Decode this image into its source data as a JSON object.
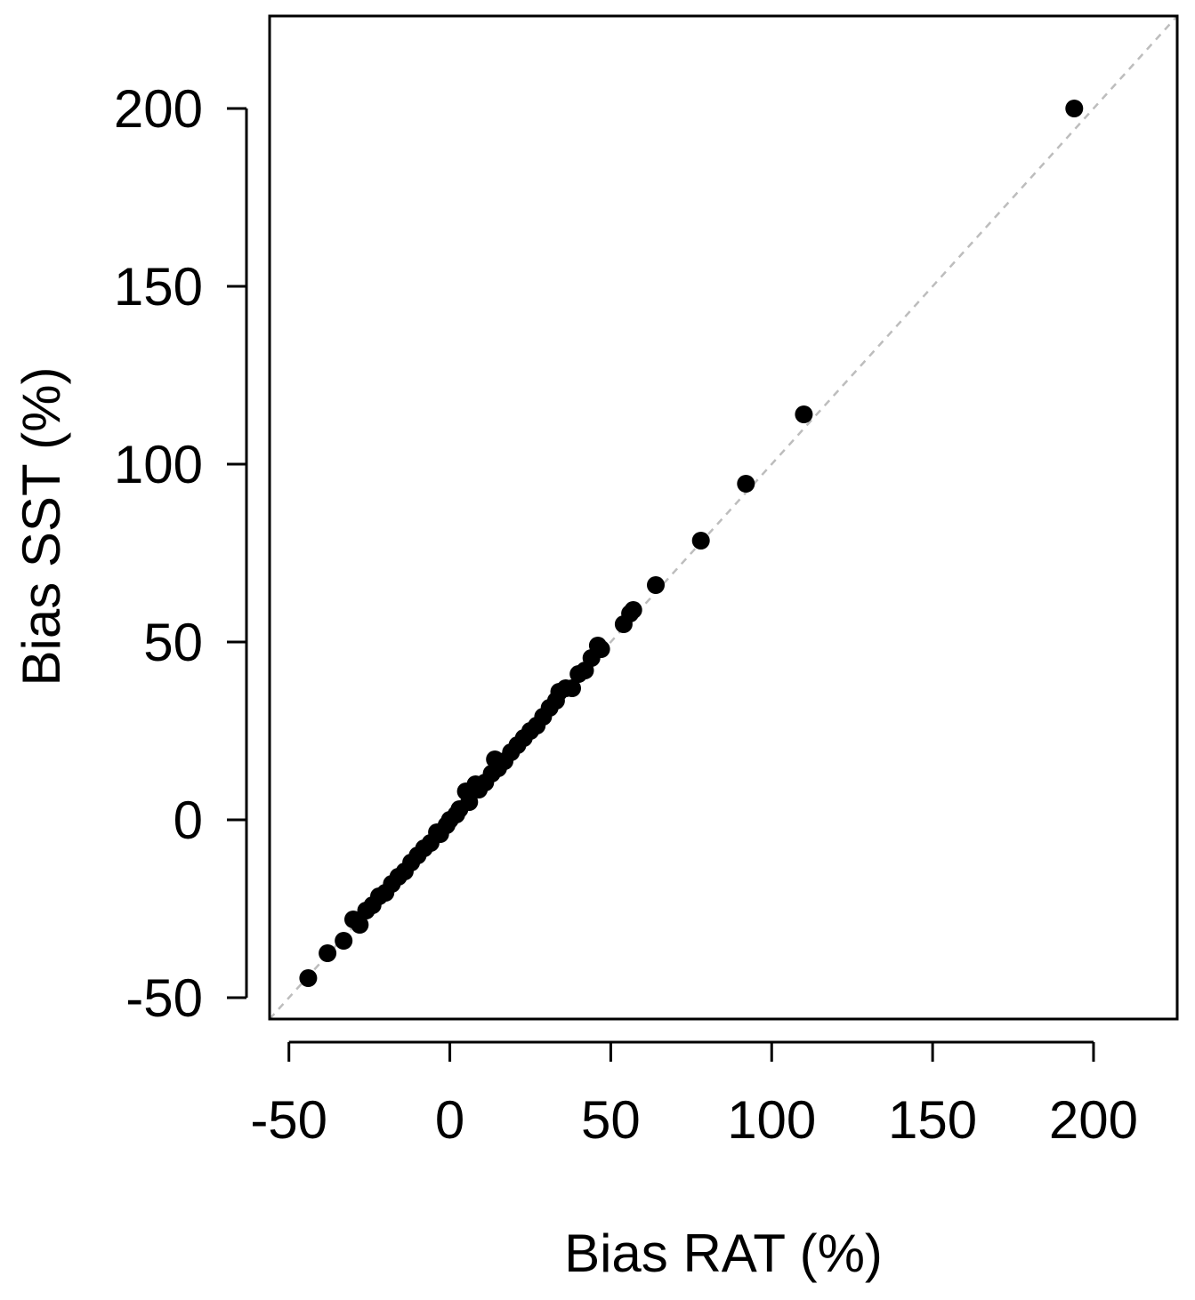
{
  "chart_data": {
    "type": "scatter",
    "title": "",
    "xlabel": "Bias RAT (%)",
    "ylabel": "Bias SST (%)",
    "xlim": [
      -56,
      226
    ],
    "ylim": [
      -56,
      226
    ],
    "x_ticks": [
      -50,
      0,
      50,
      100,
      150,
      200
    ],
    "y_ticks": [
      -50,
      0,
      50,
      100,
      150,
      200
    ],
    "x_tick_labels": [
      "-50",
      "0",
      "50",
      "100",
      "150",
      "200"
    ],
    "y_tick_labels": [
      "-50",
      "0",
      "50",
      "100",
      "150",
      "200"
    ],
    "grid": false,
    "reference_line": {
      "type": "identity",
      "style": "dashed",
      "color": "#bdbdbd"
    },
    "point_color": "#000000",
    "series": [
      {
        "points": [
          [
            -44,
            -44.5
          ],
          [
            -38,
            -37.5
          ],
          [
            -33,
            -34
          ],
          [
            -30,
            -28
          ],
          [
            -28,
            -29.5
          ],
          [
            -26,
            -25.5
          ],
          [
            -24,
            -24
          ],
          [
            -22,
            -21.5
          ],
          [
            -20,
            -20.5
          ],
          [
            -18,
            -18
          ],
          [
            -16,
            -16
          ],
          [
            -14,
            -14.5
          ],
          [
            -12,
            -12
          ],
          [
            -10,
            -10
          ],
          [
            -8,
            -8
          ],
          [
            -6,
            -6.5
          ],
          [
            -4,
            -3.5
          ],
          [
            -3,
            -4
          ],
          [
            -1,
            -1.5
          ],
          [
            0,
            0
          ],
          [
            2,
            1.5
          ],
          [
            3,
            3
          ],
          [
            5,
            8
          ],
          [
            6,
            5
          ],
          [
            8,
            10
          ],
          [
            9,
            8.5
          ],
          [
            11,
            10.5
          ],
          [
            13,
            13
          ],
          [
            14,
            17
          ],
          [
            15,
            14.5
          ],
          [
            17,
            16.5
          ],
          [
            19,
            19
          ],
          [
            21,
            21
          ],
          [
            23,
            23
          ],
          [
            25,
            25
          ],
          [
            27,
            26.5
          ],
          [
            29,
            29
          ],
          [
            31,
            31.5
          ],
          [
            33,
            33.5
          ],
          [
            34,
            36
          ],
          [
            36,
            37
          ],
          [
            38,
            37
          ],
          [
            40,
            41
          ],
          [
            42,
            42
          ],
          [
            44,
            45.5
          ],
          [
            46,
            49
          ],
          [
            47,
            48
          ],
          [
            54,
            55
          ],
          [
            56,
            58
          ],
          [
            57,
            59
          ],
          [
            64,
            66
          ],
          [
            78,
            78.5
          ],
          [
            92,
            94.5
          ],
          [
            110,
            114
          ],
          [
            194,
            200
          ]
        ]
      }
    ]
  }
}
